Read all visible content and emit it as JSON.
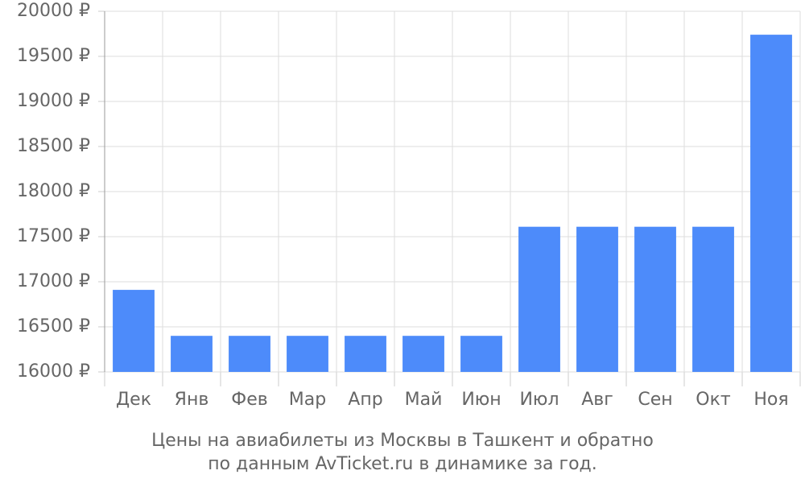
{
  "chart_data": {
    "type": "bar",
    "title": "Цены на авиабилеты из Москвы в Ташкент и обратно",
    "subtitle": "по данным AvTicket.ru в динамике за год.",
    "categories": [
      "Дек",
      "Янв",
      "Фев",
      "Мар",
      "Апр",
      "Май",
      "Июн",
      "Июл",
      "Авг",
      "Сен",
      "Окт",
      "Ноя"
    ],
    "values": [
      16910,
      16400,
      16400,
      16400,
      16400,
      16400,
      16400,
      17610,
      17610,
      17610,
      17610,
      19740
    ],
    "color": "#4d8bfa",
    "ylim": [
      16000,
      20000
    ],
    "yticks": [
      {
        "value": 16000,
        "label": "16000 ₽"
      },
      {
        "value": 16500,
        "label": "16500 ₽"
      },
      {
        "value": 17000,
        "label": "17000 ₽"
      },
      {
        "value": 17500,
        "label": "17500 ₽"
      },
      {
        "value": 18000,
        "label": "18000 ₽"
      },
      {
        "value": 18500,
        "label": "18500 ₽"
      },
      {
        "value": 19000,
        "label": "19000 ₽"
      },
      {
        "value": 19500,
        "label": "19500 ₽"
      },
      {
        "value": 20000,
        "label": "20000 ₽"
      }
    ],
    "grid": true
  }
}
